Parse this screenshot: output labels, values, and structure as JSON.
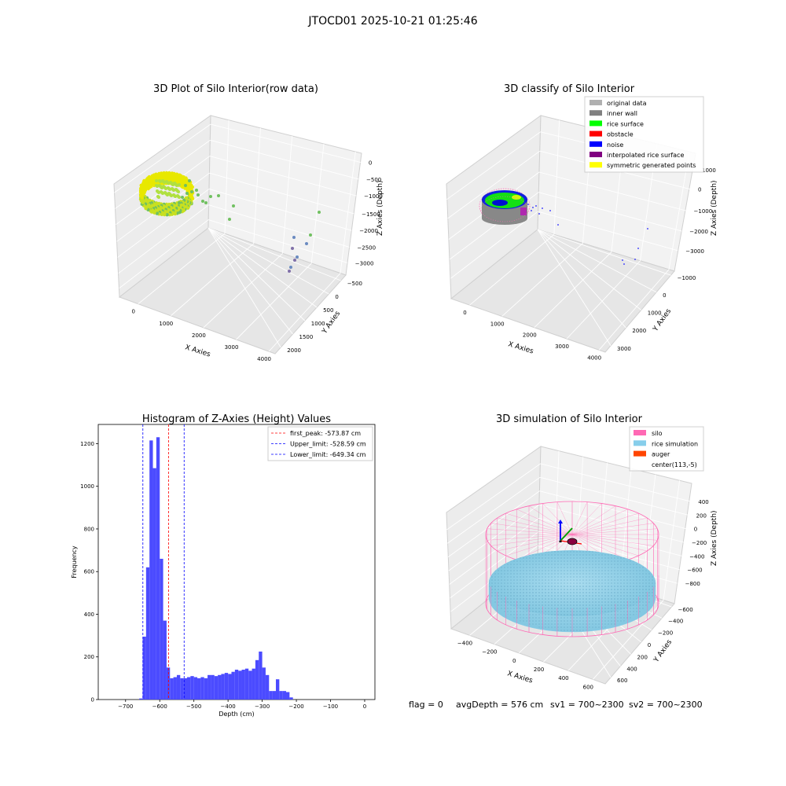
{
  "figure_title": "JTOCD01 2025-10-21 01:25:46",
  "footer": {
    "flag": "flag = 0",
    "avg_depth": "avgDepth = 576 cm",
    "sv1": "sv1 = 700~2300",
    "sv2": "sv2 = 700~2300"
  },
  "chart_data": [
    {
      "type": "scatter",
      "title": "3D Plot of Silo Interior(row data)",
      "xlabel": "X Axies",
      "ylabel": "Y Axies",
      "zlabel": "Z Axies (Depth)",
      "x_ticks": [
        "0",
        "1000",
        "2000",
        "3000",
        "4000"
      ],
      "y_ticks": [
        "2000",
        "1500",
        "1000",
        "500",
        "0",
        "−500"
      ],
      "z_ticks": [
        "0",
        "−500",
        "−1000",
        "−1500",
        "−2000",
        "−2500",
        "−3000"
      ],
      "colors": {
        "point_low": "#70c060",
        "point_high": "#e8e800",
        "point_deep": "#7050a0"
      }
    },
    {
      "type": "scatter",
      "title": "3D classify of Silo Interior",
      "xlabel": "X Axies",
      "ylabel": "Y Axies",
      "zlabel": "Z Axies (Depth)",
      "x_ticks": [
        "0",
        "1000",
        "2000",
        "3000",
        "4000"
      ],
      "y_ticks": [
        "3000",
        "2000",
        "1000",
        "0",
        "−1000"
      ],
      "z_ticks": [
        "1000",
        "0",
        "−1000",
        "−2000",
        "−3000"
      ],
      "legend_position": "top-right",
      "legend": [
        {
          "label": "original data",
          "color": "#b0b0b0"
        },
        {
          "label": "inner wall",
          "color": "#808080"
        },
        {
          "label": "rice surface",
          "color": "#00ff00"
        },
        {
          "label": "obstacle",
          "color": "#ff0000"
        },
        {
          "label": "noise",
          "color": "#0000ff"
        },
        {
          "label": "interpolated rice surface",
          "color": "#800080"
        },
        {
          "label": "symmetric generated points",
          "color": "#ffff00"
        }
      ]
    },
    {
      "type": "bar",
      "title": "Histogram of Z-Axies (Height) Values",
      "xlabel": "Depth (cm)",
      "ylabel": "Frequency",
      "xlim": [
        -780,
        30
      ],
      "ylim": [
        0,
        1290
      ],
      "x_ticks": [
        -700,
        -600,
        -500,
        -400,
        -300,
        -200,
        -100,
        0
      ],
      "y_ticks": [
        0,
        200,
        400,
        600,
        800,
        1000,
        1200
      ],
      "bar_color": "#4b4bff",
      "bin_edges": [
        -660,
        -650,
        -640,
        -630,
        -620,
        -610,
        -600,
        -590,
        -580,
        -570,
        -560,
        -550,
        -540,
        -530,
        -520,
        -510,
        -500,
        -490,
        -480,
        -470,
        -460,
        -450,
        -440,
        -430,
        -420,
        -410,
        -400,
        -390,
        -380,
        -370,
        -360,
        -350,
        -340,
        -330,
        -320,
        -310,
        -300,
        -290,
        -280,
        -270,
        -260,
        -250,
        -240,
        -230,
        -220,
        -210,
        -200,
        -190,
        -180,
        -170,
        -160,
        -150,
        -140,
        -130,
        -120,
        -110,
        -100,
        -90,
        -80,
        -70,
        -60,
        -50,
        -40,
        -30,
        -20,
        -10,
        0
      ],
      "values": [
        5,
        295,
        620,
        1215,
        1085,
        1230,
        660,
        370,
        150,
        100,
        105,
        115,
        100,
        100,
        105,
        110,
        105,
        100,
        105,
        100,
        115,
        115,
        110,
        115,
        120,
        125,
        120,
        130,
        140,
        135,
        140,
        145,
        135,
        145,
        185,
        225,
        150,
        115,
        40,
        40,
        95,
        40,
        40,
        35,
        10,
        0,
        0,
        0,
        0,
        0,
        0,
        0,
        0,
        0,
        0,
        0,
        0,
        0,
        0,
        0,
        0,
        0,
        0,
        0,
        0,
        0
      ],
      "vlines": [
        {
          "label": "first_peak: -573.87 cm",
          "x": -573.87,
          "color": "#ff0000"
        },
        {
          "label": "Upper_limit: -528.59 cm",
          "x": -528.59,
          "color": "#0000ff"
        },
        {
          "label": "Lower_limit: -649.34 cm",
          "x": -649.34,
          "color": "#0000ff"
        }
      ],
      "legend_position": "top-right"
    },
    {
      "type": "scatter",
      "title": "3D simulation of Silo Interior",
      "xlabel": "X Axies",
      "ylabel": "Y Axies",
      "zlabel": "Z Axies (Depth)",
      "x_ticks": [
        "−400",
        "−200",
        "0",
        "200",
        "400",
        "600"
      ],
      "y_ticks": [
        "600",
        "400",
        "200",
        "0",
        "−200",
        "−400",
        "−600"
      ],
      "z_ticks": [
        "400",
        "200",
        "0",
        "−200",
        "−400",
        "−600",
        "−800"
      ],
      "legend_position": "top-right",
      "legend": [
        {
          "label": "silo",
          "color": "#ff69b4"
        },
        {
          "label": "rice simulation",
          "color": "#87ceeb"
        },
        {
          "label": "auger",
          "color": "#ff4500"
        },
        {
          "label": "center(113,-5)",
          "color": ""
        }
      ]
    }
  ]
}
